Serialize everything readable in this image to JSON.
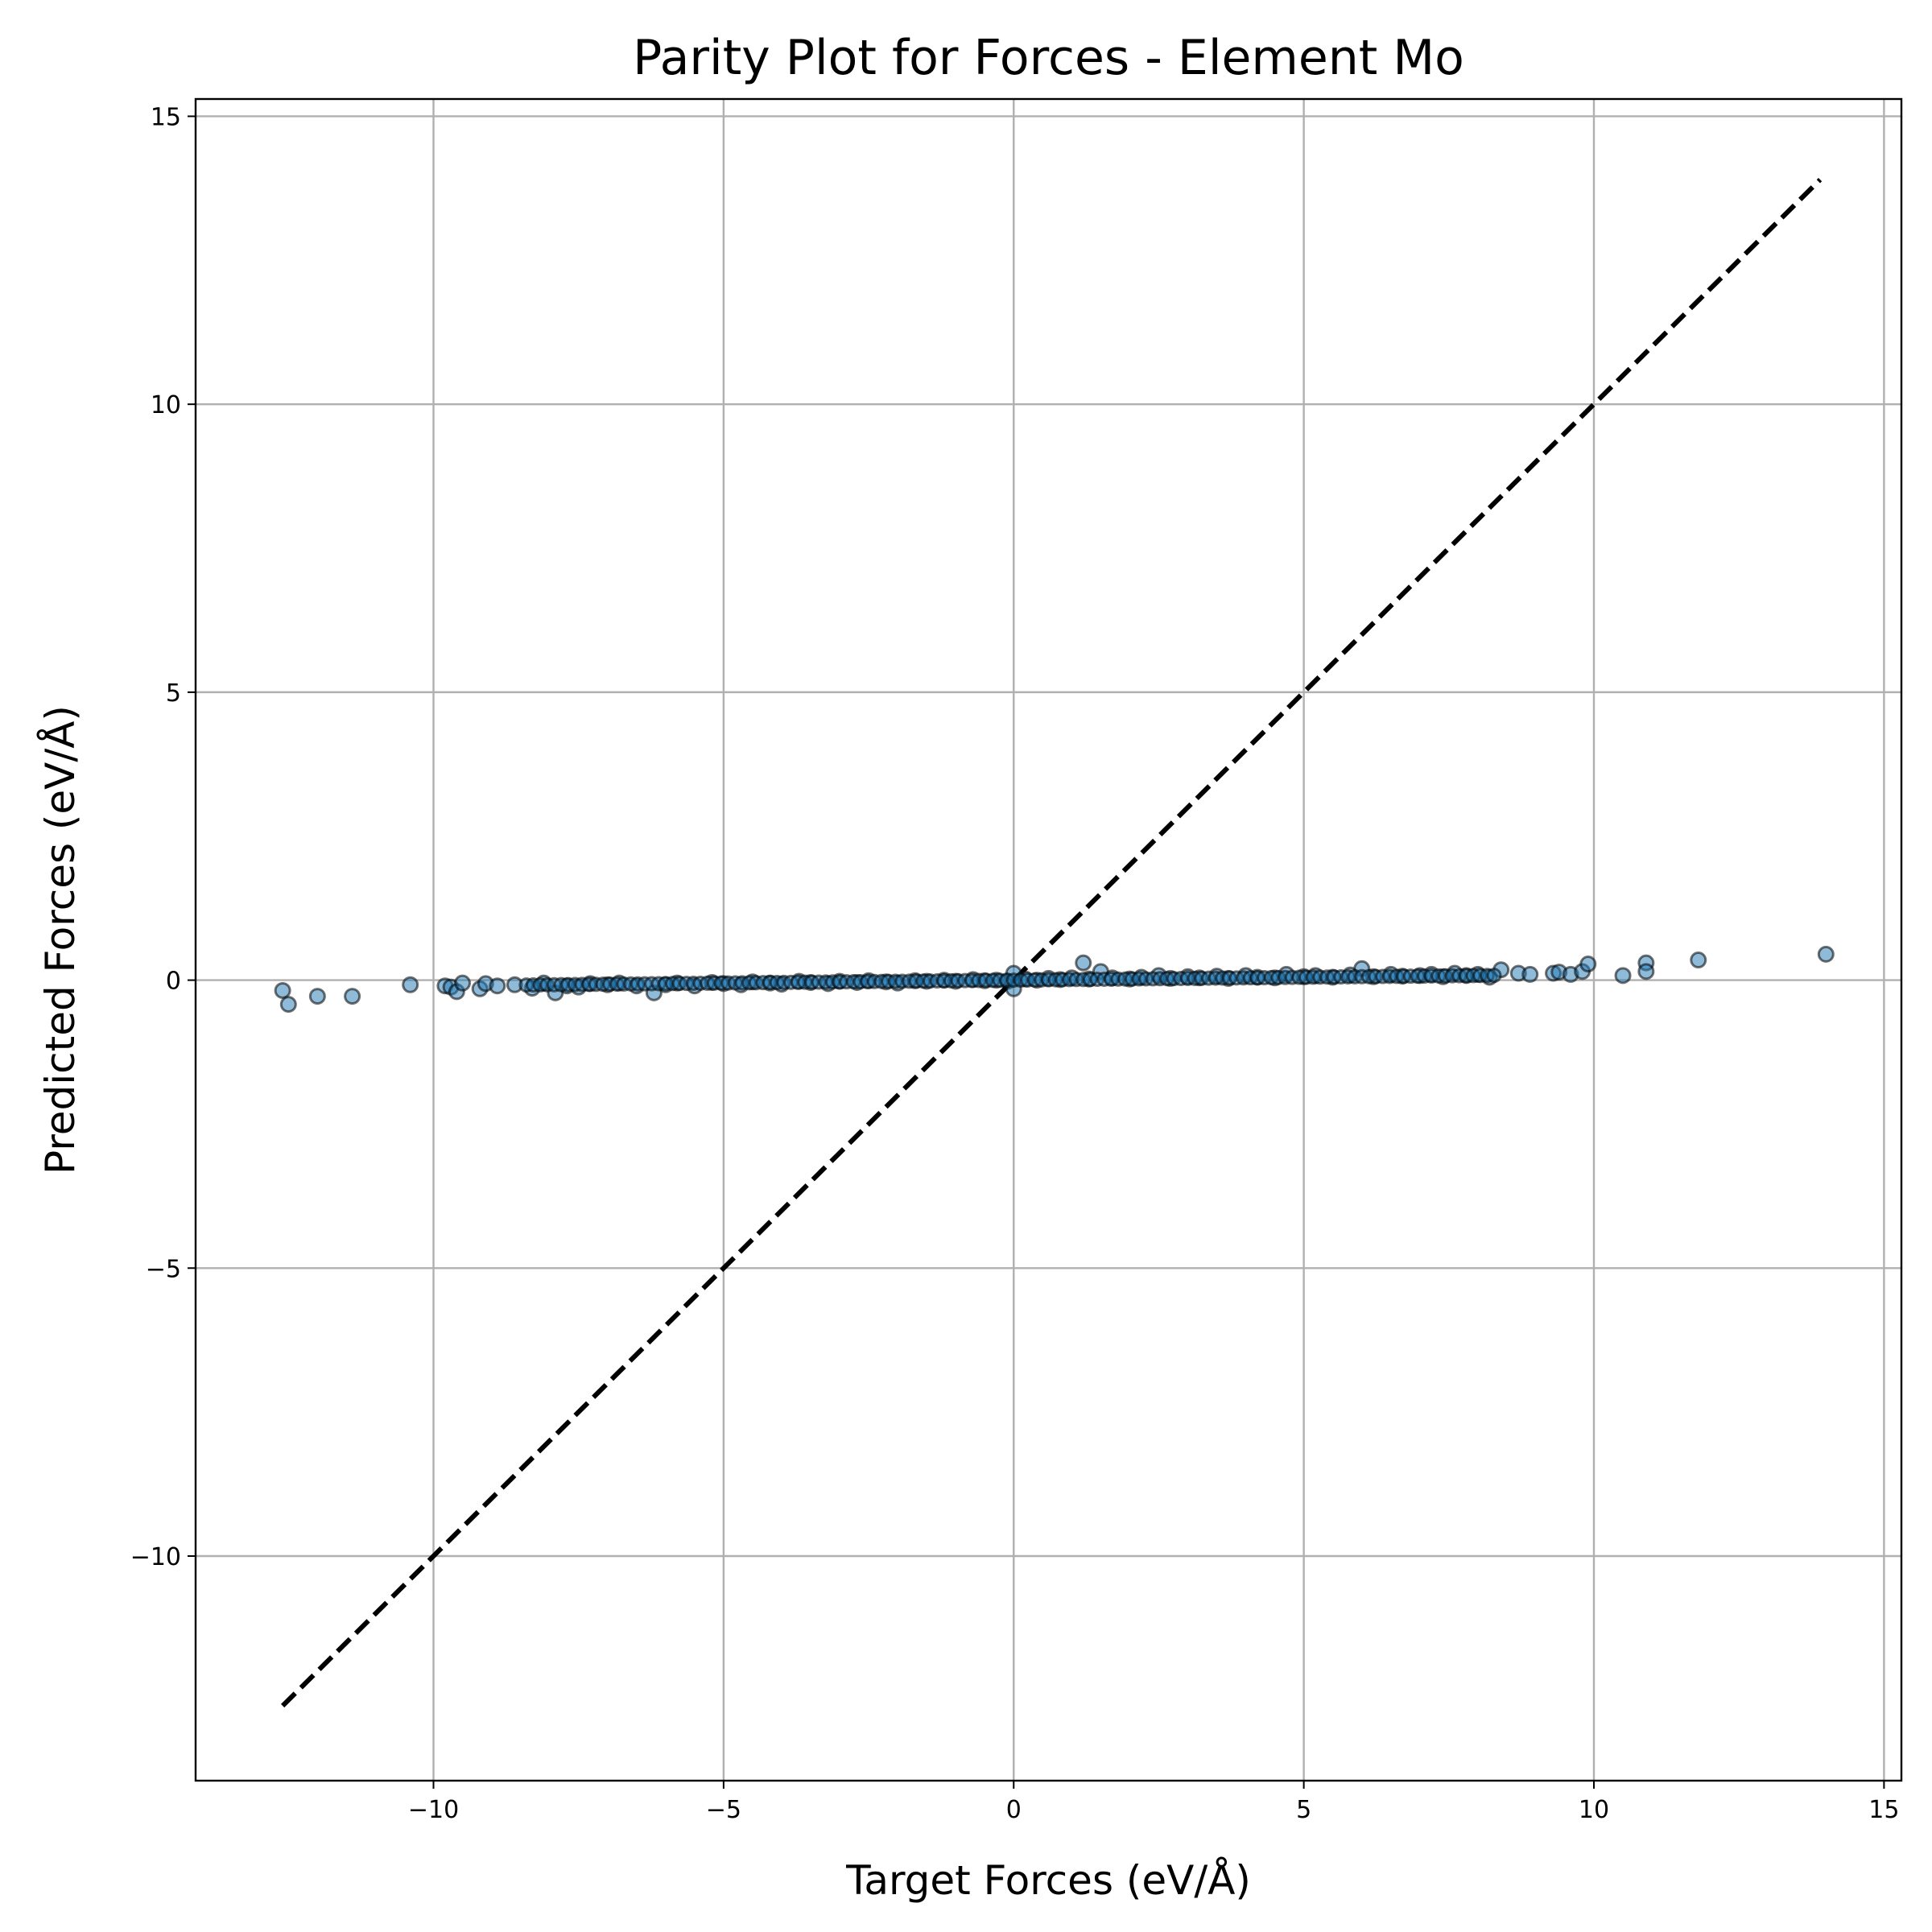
{
  "chart_data": {
    "type": "scatter",
    "title": "Parity Plot for Forces - Element Mo",
    "xlabel": "Target Forces (eV/Å)",
    "ylabel": "Predicted Forces (eV/Å)",
    "xlim": [
      -14.1,
      15.3
    ],
    "ylim": [
      -13.9,
      15.3
    ],
    "xticks": [
      -10,
      -5,
      0,
      5,
      10,
      15
    ],
    "yticks": [
      -10,
      -5,
      0,
      5,
      10,
      15
    ],
    "xtick_labels": [
      "−10",
      "−5",
      "0",
      "5",
      "10",
      "15"
    ],
    "ytick_labels": [
      "−10",
      "−5",
      "0",
      "5",
      "10",
      "15"
    ],
    "grid": true,
    "parity_line": {
      "x": [
        -12.6,
        13.9
      ],
      "y": [
        -12.6,
        13.9
      ],
      "style": "dashed",
      "color": "#000000"
    },
    "marker_color": "#1f77b4",
    "series": [
      {
        "points": [
          [
            -12.6,
            -0.18
          ],
          [
            -12.5,
            -0.42
          ],
          [
            -12.0,
            -0.28
          ],
          [
            -11.4,
            -0.28
          ],
          [
            -10.4,
            -0.08
          ],
          [
            -9.8,
            -0.1
          ],
          [
            -9.7,
            -0.12
          ],
          [
            -9.6,
            -0.2
          ],
          [
            -9.5,
            -0.05
          ],
          [
            -9.2,
            -0.15
          ],
          [
            -9.1,
            -0.06
          ],
          [
            -8.9,
            -0.1
          ],
          [
            -8.6,
            -0.08
          ],
          [
            -8.3,
            -0.14
          ],
          [
            -8.1,
            -0.05
          ],
          [
            -7.9,
            -0.22
          ],
          [
            -7.7,
            -0.1
          ],
          [
            -7.5,
            -0.12
          ],
          [
            -7.3,
            -0.06
          ],
          [
            -7.0,
            -0.08
          ],
          [
            -6.8,
            -0.05
          ],
          [
            -6.5,
            -0.1
          ],
          [
            -6.2,
            -0.22
          ],
          [
            -6.0,
            -0.08
          ],
          [
            -5.8,
            -0.05
          ],
          [
            -5.5,
            -0.1
          ],
          [
            -5.2,
            -0.04
          ],
          [
            -5.0,
            -0.06
          ],
          [
            -4.7,
            -0.08
          ],
          [
            -4.5,
            -0.03
          ],
          [
            -4.2,
            -0.05
          ],
          [
            -4.0,
            -0.07
          ],
          [
            -3.7,
            -0.02
          ],
          [
            -3.5,
            -0.04
          ],
          [
            -3.2,
            -0.06
          ],
          [
            -3.0,
            -0.02
          ],
          [
            -2.7,
            -0.04
          ],
          [
            -2.5,
            -0.01
          ],
          [
            -2.2,
            -0.03
          ],
          [
            -2.0,
            -0.05
          ],
          [
            -1.7,
            -0.01
          ],
          [
            -1.5,
            -0.02
          ],
          [
            -1.2,
            0.0
          ],
          [
            -1.0,
            -0.02
          ],
          [
            -0.7,
            0.01
          ],
          [
            -0.5,
            -0.01
          ],
          [
            -0.3,
            0.0
          ],
          [
            -0.1,
            -0.02
          ],
          [
            0.0,
            0.12
          ],
          [
            0.0,
            -0.15
          ],
          [
            0.2,
            0.02
          ],
          [
            0.4,
            0.0
          ],
          [
            0.6,
            0.03
          ],
          [
            0.8,
            0.01
          ],
          [
            1.0,
            0.04
          ],
          [
            1.2,
            0.3
          ],
          [
            1.3,
            0.02
          ],
          [
            1.5,
            0.15
          ],
          [
            1.7,
            0.04
          ],
          [
            2.0,
            0.02
          ],
          [
            2.2,
            0.05
          ],
          [
            2.5,
            0.08
          ],
          [
            2.7,
            0.03
          ],
          [
            3.0,
            0.06
          ],
          [
            3.2,
            0.04
          ],
          [
            3.5,
            0.07
          ],
          [
            3.7,
            0.03
          ],
          [
            4.0,
            0.08
          ],
          [
            4.2,
            0.05
          ],
          [
            4.5,
            0.04
          ],
          [
            4.7,
            0.1
          ],
          [
            5.0,
            0.06
          ],
          [
            5.2,
            0.08
          ],
          [
            5.5,
            0.05
          ],
          [
            5.8,
            0.09
          ],
          [
            6.0,
            0.2
          ],
          [
            6.2,
            0.06
          ],
          [
            6.5,
            0.1
          ],
          [
            6.7,
            0.07
          ],
          [
            7.0,
            0.08
          ],
          [
            7.2,
            0.1
          ],
          [
            7.4,
            0.06
          ],
          [
            7.6,
            0.12
          ],
          [
            7.8,
            0.08
          ],
          [
            8.0,
            0.1
          ],
          [
            8.2,
            0.05
          ],
          [
            8.4,
            0.18
          ],
          [
            8.7,
            0.12
          ],
          [
            8.9,
            0.1
          ],
          [
            9.3,
            0.12
          ],
          [
            9.4,
            0.14
          ],
          [
            9.6,
            0.1
          ],
          [
            9.8,
            0.15
          ],
          [
            9.9,
            0.28
          ],
          [
            10.5,
            0.08
          ],
          [
            10.9,
            0.3
          ],
          [
            10.9,
            0.15
          ],
          [
            11.8,
            0.35
          ],
          [
            14.0,
            0.45
          ]
        ]
      }
    ]
  }
}
